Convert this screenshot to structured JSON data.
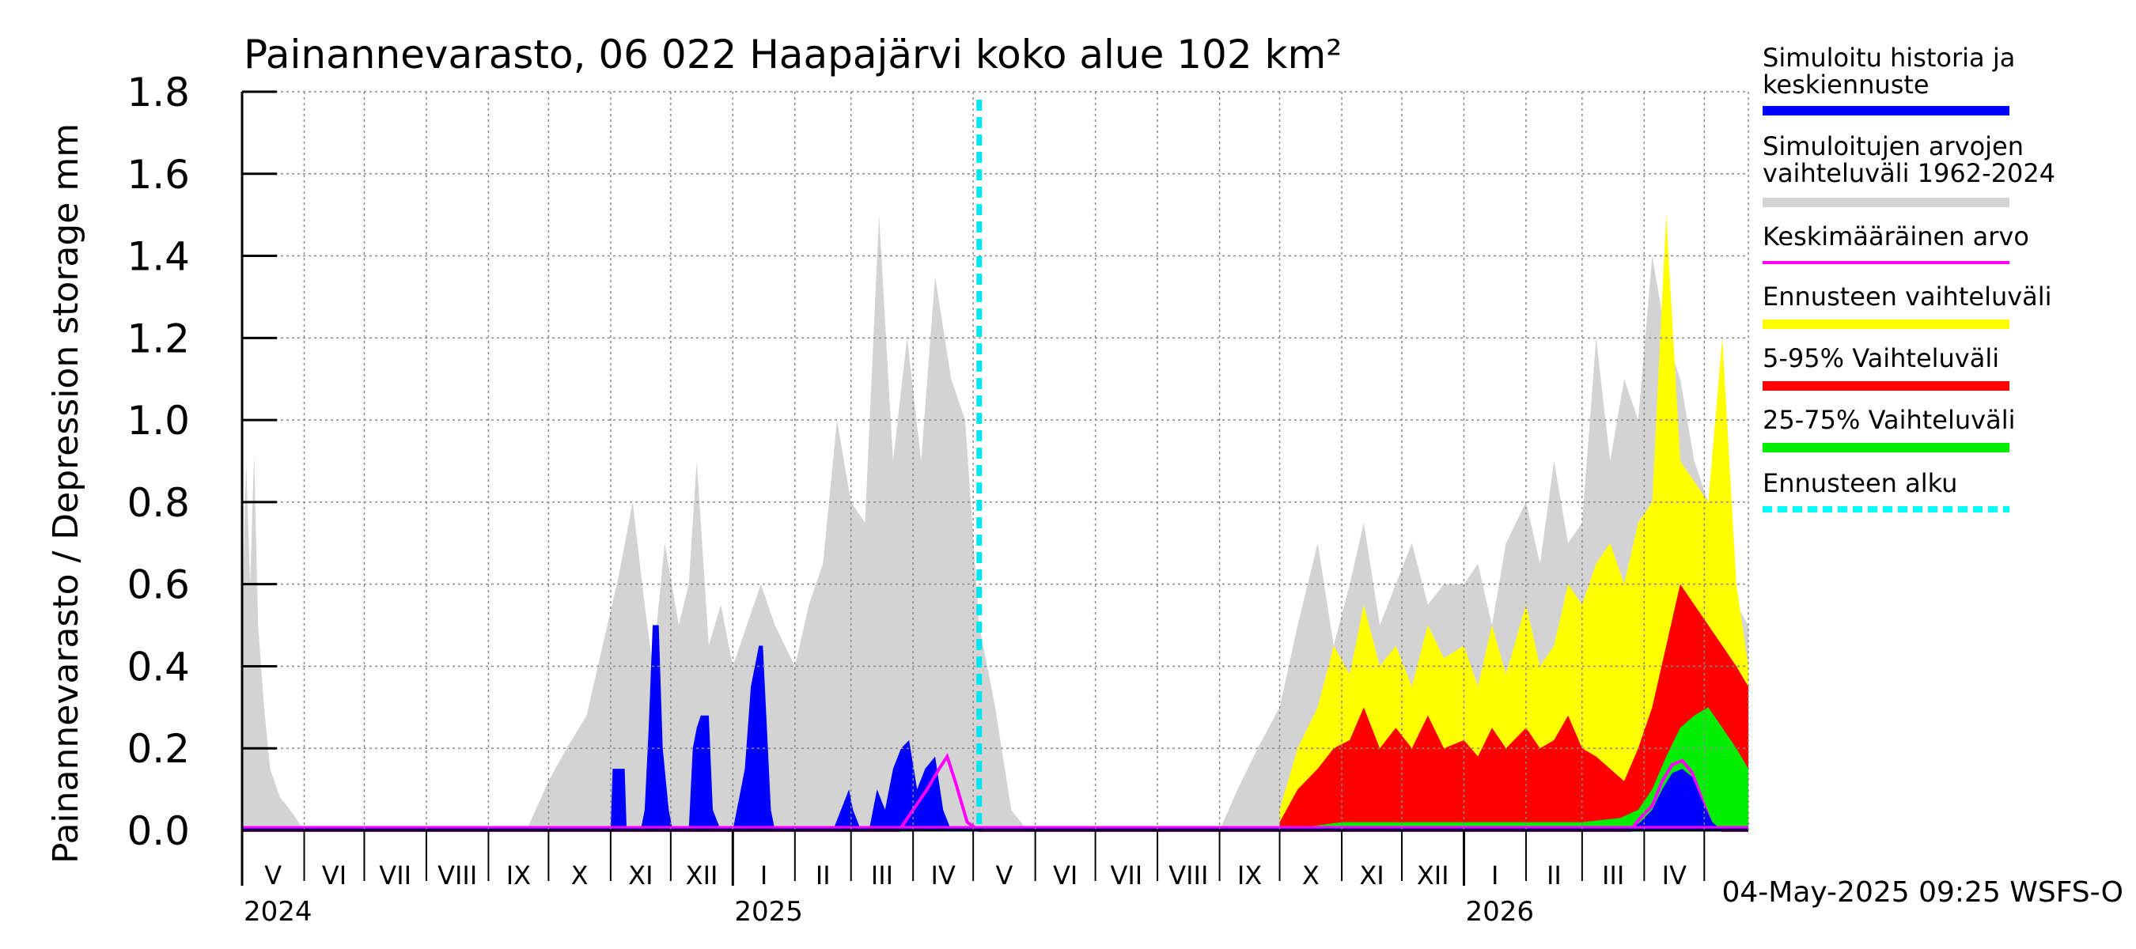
{
  "chart_data": {
    "type": "area",
    "title": "Painannevarasto, 06 022 Haapajärvi koko alue 102 km²",
    "ylabel": "Painannevarasto / Depression storage    mm",
    "ylim": [
      0,
      1.8
    ],
    "yticks": [
      "0.0",
      "0.2",
      "0.4",
      "0.6",
      "0.8",
      "1.0",
      "1.2",
      "1.4",
      "1.6",
      "1.8"
    ],
    "xlim": [
      "2024-05-01",
      "2026-05-23"
    ],
    "month_labels": [
      "V",
      "VI",
      "VII",
      "VIII",
      "IX",
      "X",
      "XI",
      "XII",
      "I",
      "II",
      "III",
      "IV",
      "V",
      "VI",
      "VII",
      "VIII",
      "IX",
      "X",
      "XI",
      "XII",
      "I",
      "II",
      "III",
      "IV"
    ],
    "year_labels": [
      {
        "label": "2024",
        "date": "2024-05-01"
      },
      {
        "label": "2025",
        "date": "2025-01-01"
      },
      {
        "label": "2026",
        "date": "2026-01-01"
      }
    ],
    "forecast_start": "2025-05-04",
    "grid": true,
    "legend_position": "right",
    "legend": [
      {
        "label": "Simuloitu historia ja keskiennuste",
        "color": "#0000ff",
        "style": "solid"
      },
      {
        "label": "Simuloitujen arvojen vaihteluväli 1962-2024",
        "color": "#d3d3d3",
        "style": "solid"
      },
      {
        "label": "Keskimääräinen arvo",
        "color": "#ff00ff",
        "style": "thin"
      },
      {
        "label": "Ennusteen vaihteluväli",
        "color": "#ffff00",
        "style": "solid"
      },
      {
        "label": "5-95% Vaihteluväli",
        "color": "#ff0000",
        "style": "solid"
      },
      {
        "label": "25-75% Vaihteluväli",
        "color": "#00ee00",
        "style": "solid"
      },
      {
        "label": "Ennusteen alku",
        "color": "#00ffff",
        "style": "dashed"
      }
    ],
    "footer": "04-May-2025 09:25 WSFS-O",
    "series": [
      {
        "name": "Simuloitujen arvojen vaihteluväli 1962-2024",
        "color": "#d3d3d3",
        "x": [
          "2024-05-01",
          "2024-05-03",
          "2024-05-05",
          "2024-05-07",
          "2024-05-09",
          "2024-05-12",
          "2024-05-15",
          "2024-05-20",
          "2024-05-25",
          "2024-06-01",
          "2024-09-20",
          "2024-10-01",
          "2024-10-10",
          "2024-10-20",
          "2024-10-28",
          "2024-11-05",
          "2024-11-12",
          "2024-11-18",
          "2024-11-22",
          "2024-11-28",
          "2024-12-05",
          "2024-12-10",
          "2024-12-14",
          "2024-12-20",
          "2024-12-26",
          "2025-01-01",
          "2025-01-08",
          "2025-01-15",
          "2025-01-22",
          "2025-02-01",
          "2025-02-08",
          "2025-02-15",
          "2025-02-22",
          "2025-03-01",
          "2025-03-08",
          "2025-03-15",
          "2025-03-22",
          "2025-03-29",
          "2025-04-05",
          "2025-04-12",
          "2025-04-20",
          "2025-04-27",
          "2025-05-04",
          "2025-05-12",
          "2025-05-20",
          "2025-05-28",
          "2025-06-10",
          "2025-09-01",
          "2025-09-10",
          "2025-09-20",
          "2025-10-01",
          "2025-10-10",
          "2025-10-20",
          "2025-10-28",
          "2025-11-05",
          "2025-11-12",
          "2025-11-20",
          "2025-11-28",
          "2025-12-06",
          "2025-12-14",
          "2025-12-22",
          "2026-01-01",
          "2026-01-08",
          "2026-01-15",
          "2026-01-22",
          "2026-02-01",
          "2026-02-08",
          "2026-02-15",
          "2026-02-22",
          "2026-03-01",
          "2026-03-08",
          "2026-03-15",
          "2026-03-22",
          "2026-03-29",
          "2026-04-05",
          "2026-04-12",
          "2026-04-19",
          "2026-04-26",
          "2026-05-03",
          "2026-05-10",
          "2026-05-17",
          "2026-05-23"
        ],
        "values": [
          0.5,
          0.9,
          0.6,
          0.92,
          0.5,
          0.3,
          0.15,
          0.08,
          0.05,
          0.0,
          0.0,
          0.12,
          0.2,
          0.28,
          0.45,
          0.62,
          0.8,
          0.55,
          0.4,
          0.7,
          0.5,
          0.6,
          0.9,
          0.45,
          0.55,
          0.4,
          0.5,
          0.6,
          0.5,
          0.4,
          0.55,
          0.65,
          1.0,
          0.8,
          0.75,
          1.5,
          0.9,
          1.2,
          0.9,
          1.35,
          1.1,
          1.0,
          0.5,
          0.3,
          0.05,
          0.0,
          0.0,
          0.0,
          0.1,
          0.2,
          0.3,
          0.5,
          0.7,
          0.45,
          0.6,
          0.75,
          0.5,
          0.6,
          0.7,
          0.55,
          0.6,
          0.6,
          0.65,
          0.5,
          0.7,
          0.8,
          0.65,
          0.9,
          0.7,
          0.75,
          1.2,
          0.9,
          1.1,
          1.0,
          1.4,
          1.2,
          1.1,
          0.9,
          0.8,
          0.65,
          0.55,
          0.5
        ]
      },
      {
        "name": "Ennusteen vaihteluväli",
        "color": "#ffff00",
        "x": [
          "2025-10-01",
          "2025-10-10",
          "2025-10-20",
          "2025-10-28",
          "2025-11-05",
          "2025-11-12",
          "2025-11-20",
          "2025-11-28",
          "2025-12-06",
          "2025-12-14",
          "2025-12-22",
          "2026-01-01",
          "2026-01-08",
          "2026-01-15",
          "2026-01-22",
          "2026-02-01",
          "2026-02-08",
          "2026-02-15",
          "2026-02-22",
          "2026-03-01",
          "2026-03-08",
          "2026-03-15",
          "2026-03-22",
          "2026-03-29",
          "2026-04-05",
          "2026-04-12",
          "2026-04-19",
          "2026-04-26",
          "2026-05-03",
          "2026-05-10",
          "2026-05-17",
          "2026-05-23"
        ],
        "values": [
          0.05,
          0.2,
          0.3,
          0.45,
          0.38,
          0.55,
          0.4,
          0.45,
          0.35,
          0.5,
          0.42,
          0.45,
          0.35,
          0.5,
          0.38,
          0.55,
          0.4,
          0.45,
          0.6,
          0.55,
          0.65,
          0.7,
          0.6,
          0.75,
          0.8,
          1.5,
          0.9,
          0.85,
          0.8,
          1.2,
          0.6,
          0.4
        ]
      },
      {
        "name": "5-95% Vaihteluväli",
        "color": "#ff0000",
        "x": [
          "2025-10-01",
          "2025-10-10",
          "2025-10-20",
          "2025-10-28",
          "2025-11-05",
          "2025-11-12",
          "2025-11-20",
          "2025-11-28",
          "2025-12-06",
          "2025-12-14",
          "2025-12-22",
          "2026-01-01",
          "2026-01-08",
          "2026-01-15",
          "2026-01-22",
          "2026-02-01",
          "2026-02-08",
          "2026-02-15",
          "2026-02-22",
          "2026-03-01",
          "2026-03-08",
          "2026-03-15",
          "2026-03-22",
          "2026-03-29",
          "2026-04-05",
          "2026-04-12",
          "2026-04-19",
          "2026-04-26",
          "2026-05-03",
          "2026-05-10",
          "2026-05-17",
          "2026-05-23"
        ],
        "values": [
          0.02,
          0.1,
          0.15,
          0.2,
          0.22,
          0.3,
          0.2,
          0.25,
          0.2,
          0.28,
          0.2,
          0.22,
          0.18,
          0.25,
          0.2,
          0.25,
          0.2,
          0.22,
          0.28,
          0.2,
          0.18,
          0.15,
          0.12,
          0.2,
          0.3,
          0.45,
          0.6,
          0.55,
          0.5,
          0.45,
          0.4,
          0.35
        ]
      },
      {
        "name": "25-75% Vaihteluväli",
        "color": "#00ee00",
        "x": [
          "2025-10-01",
          "2025-11-01",
          "2025-12-01",
          "2026-01-01",
          "2026-02-01",
          "2026-03-01",
          "2026-03-20",
          "2026-03-29",
          "2026-04-05",
          "2026-04-12",
          "2026-04-19",
          "2026-04-26",
          "2026-05-03",
          "2026-05-10",
          "2026-05-17",
          "2026-05-23"
        ],
        "values": [
          0.0,
          0.02,
          0.02,
          0.02,
          0.02,
          0.02,
          0.03,
          0.05,
          0.1,
          0.18,
          0.25,
          0.28,
          0.3,
          0.25,
          0.2,
          0.15
        ]
      },
      {
        "name": "Simuloitu historia ja keskiennuste",
        "color": "#0000ff",
        "x": [
          "2024-05-01",
          "2024-11-01",
          "2024-11-02",
          "2024-11-08",
          "2024-11-09",
          "2024-11-16",
          "2024-11-18",
          "2024-11-20",
          "2024-11-22",
          "2024-11-25",
          "2024-11-27",
          "2024-11-30",
          "2024-12-02",
          "2024-12-10",
          "2024-12-12",
          "2024-12-14",
          "2024-12-16",
          "2024-12-20",
          "2024-12-22",
          "2024-12-26",
          "2024-12-28",
          "2025-01-01",
          "2025-01-05",
          "2025-01-07",
          "2025-01-10",
          "2025-01-14",
          "2025-01-16",
          "2025-01-20",
          "2025-01-22",
          "2025-02-01",
          "2025-02-20",
          "2025-02-24",
          "2025-02-28",
          "2025-03-02",
          "2025-03-06",
          "2025-03-10",
          "2025-03-14",
          "2025-03-18",
          "2025-03-22",
          "2025-03-26",
          "2025-03-30",
          "2025-04-03",
          "2025-04-07",
          "2025-04-12",
          "2025-04-16",
          "2025-04-20",
          "2025-04-24",
          "2026-05-23"
        ],
        "values": [
          0.0,
          0.0,
          0.15,
          0.15,
          0.0,
          0.0,
          0.05,
          0.25,
          0.5,
          0.5,
          0.2,
          0.05,
          0.0,
          0.0,
          0.2,
          0.25,
          0.28,
          0.28,
          0.05,
          0.0,
          0.0,
          0.0,
          0.1,
          0.15,
          0.35,
          0.45,
          0.45,
          0.05,
          0.0,
          0.0,
          0.0,
          0.05,
          0.1,
          0.05,
          0.0,
          0.0,
          0.1,
          0.05,
          0.15,
          0.2,
          0.22,
          0.1,
          0.15,
          0.18,
          0.05,
          0.0,
          0.0,
          0.0
        ]
      },
      {
        "name": "Keskimääräinen arvo",
        "color": "#ff00ff",
        "x": [
          "2024-05-01",
          "2025-03-25",
          "2025-04-01",
          "2025-04-08",
          "2025-04-14",
          "2025-04-18",
          "2025-04-22",
          "2025-04-28",
          "2025-05-04",
          "2026-03-25",
          "2026-03-30",
          "2026-04-05",
          "2026-04-10",
          "2026-04-15",
          "2026-04-20",
          "2026-04-25",
          "2026-05-01",
          "2026-05-05",
          "2026-05-10",
          "2026-05-23"
        ],
        "values": [
          0.0,
          0.0,
          0.05,
          0.1,
          0.15,
          0.18,
          0.12,
          0.02,
          0.0,
          0.0,
          0.03,
          0.06,
          0.12,
          0.16,
          0.17,
          0.14,
          0.06,
          0.01,
          0.0,
          0.0
        ]
      },
      {
        "name": "Simuloitu historia ja keskiennuste",
        "color": "#0000ff",
        "x": [
          "2026-03-25",
          "2026-03-30",
          "2026-04-05",
          "2026-04-10",
          "2026-04-15",
          "2026-04-20",
          "2026-04-25",
          "2026-05-01",
          "2026-05-05",
          "2026-05-10",
          "2026-05-23"
        ],
        "values": [
          0.0,
          0.02,
          0.05,
          0.1,
          0.14,
          0.15,
          0.13,
          0.06,
          0.02,
          0.0,
          0.0
        ]
      }
    ]
  }
}
